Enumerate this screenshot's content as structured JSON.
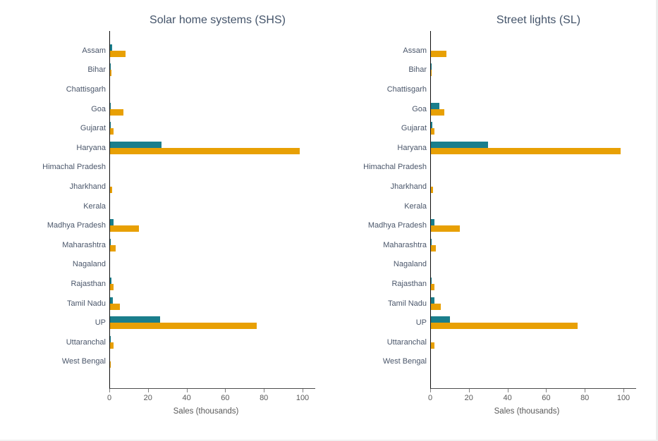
{
  "page": {
    "background": "#ffffff"
  },
  "colors": {
    "series1": "#1A7E8C",
    "series2": "#E8A004",
    "axis_line": "#0d0d0d",
    "tick": "#808080",
    "text": "#44546A"
  },
  "chart_data": [
    {
      "type": "bar",
      "orientation": "horizontal",
      "title": "Solar home systems (SHS)",
      "xlabel": "Sales (thousands)",
      "xlim": [
        0,
        106.5
      ],
      "xticks": [
        0,
        20,
        40,
        60,
        80,
        100
      ],
      "grid": false,
      "legend": "none",
      "categories": [
        "Assam",
        "Bihar",
        "Chattisgarh",
        "Goa",
        "Gujarat",
        "Haryana",
        "Himachal Pradesh",
        "Jharkhand",
        "Kerala",
        "Madhya Pradesh",
        "Maharashtra",
        "Nagaland",
        "Rajasthan",
        "Tamil Nadu",
        "UP",
        "Uttaranchal",
        "West Bengal"
      ],
      "series": [
        {
          "name": "series-1-teal",
          "color": "#1A7E8C",
          "values": [
            1,
            0.2,
            0,
            0.5,
            0.2,
            26.5,
            0,
            0,
            0,
            2,
            0.3,
            0,
            0.7,
            1.3,
            26,
            0.4,
            0
          ]
        },
        {
          "name": "series-2-orange",
          "color": "#E8A004",
          "values": [
            8,
            0.8,
            0,
            7,
            2,
            98,
            0,
            1,
            0,
            15,
            3,
            0,
            2,
            5,
            76,
            2,
            0.4
          ]
        }
      ]
    },
    {
      "type": "bar",
      "orientation": "horizontal",
      "title": "Street lights (SL)",
      "xlabel": "Sales (thousands)",
      "xlim": [
        0,
        106.5
      ],
      "xticks": [
        0,
        20,
        40,
        60,
        80,
        100
      ],
      "grid": false,
      "legend": "none",
      "categories": [
        "Assam",
        "Bihar",
        "Chattisgarh",
        "Goa",
        "Gujarat",
        "Haryana",
        "Himachal Pradesh",
        "Jharkhand",
        "Kerala",
        "Madhya Pradesh",
        "Maharashtra",
        "Nagaland",
        "Rajasthan",
        "Tamil Nadu",
        "UP",
        "Uttaranchal",
        "West Bengal"
      ],
      "series": [
        {
          "name": "series-1-teal",
          "color": "#1A7E8C",
          "values": [
            0,
            0.5,
            0,
            4.5,
            0.7,
            29.5,
            0,
            0,
            0,
            2,
            0.3,
            0,
            0.4,
            2,
            10,
            0,
            0
          ]
        },
        {
          "name": "series-2-orange",
          "color": "#E8A004",
          "values": [
            8,
            0.4,
            0,
            7,
            2,
            98,
            0,
            1,
            0,
            15,
            2.6,
            0,
            2,
            5,
            76,
            2,
            0
          ]
        }
      ]
    }
  ]
}
